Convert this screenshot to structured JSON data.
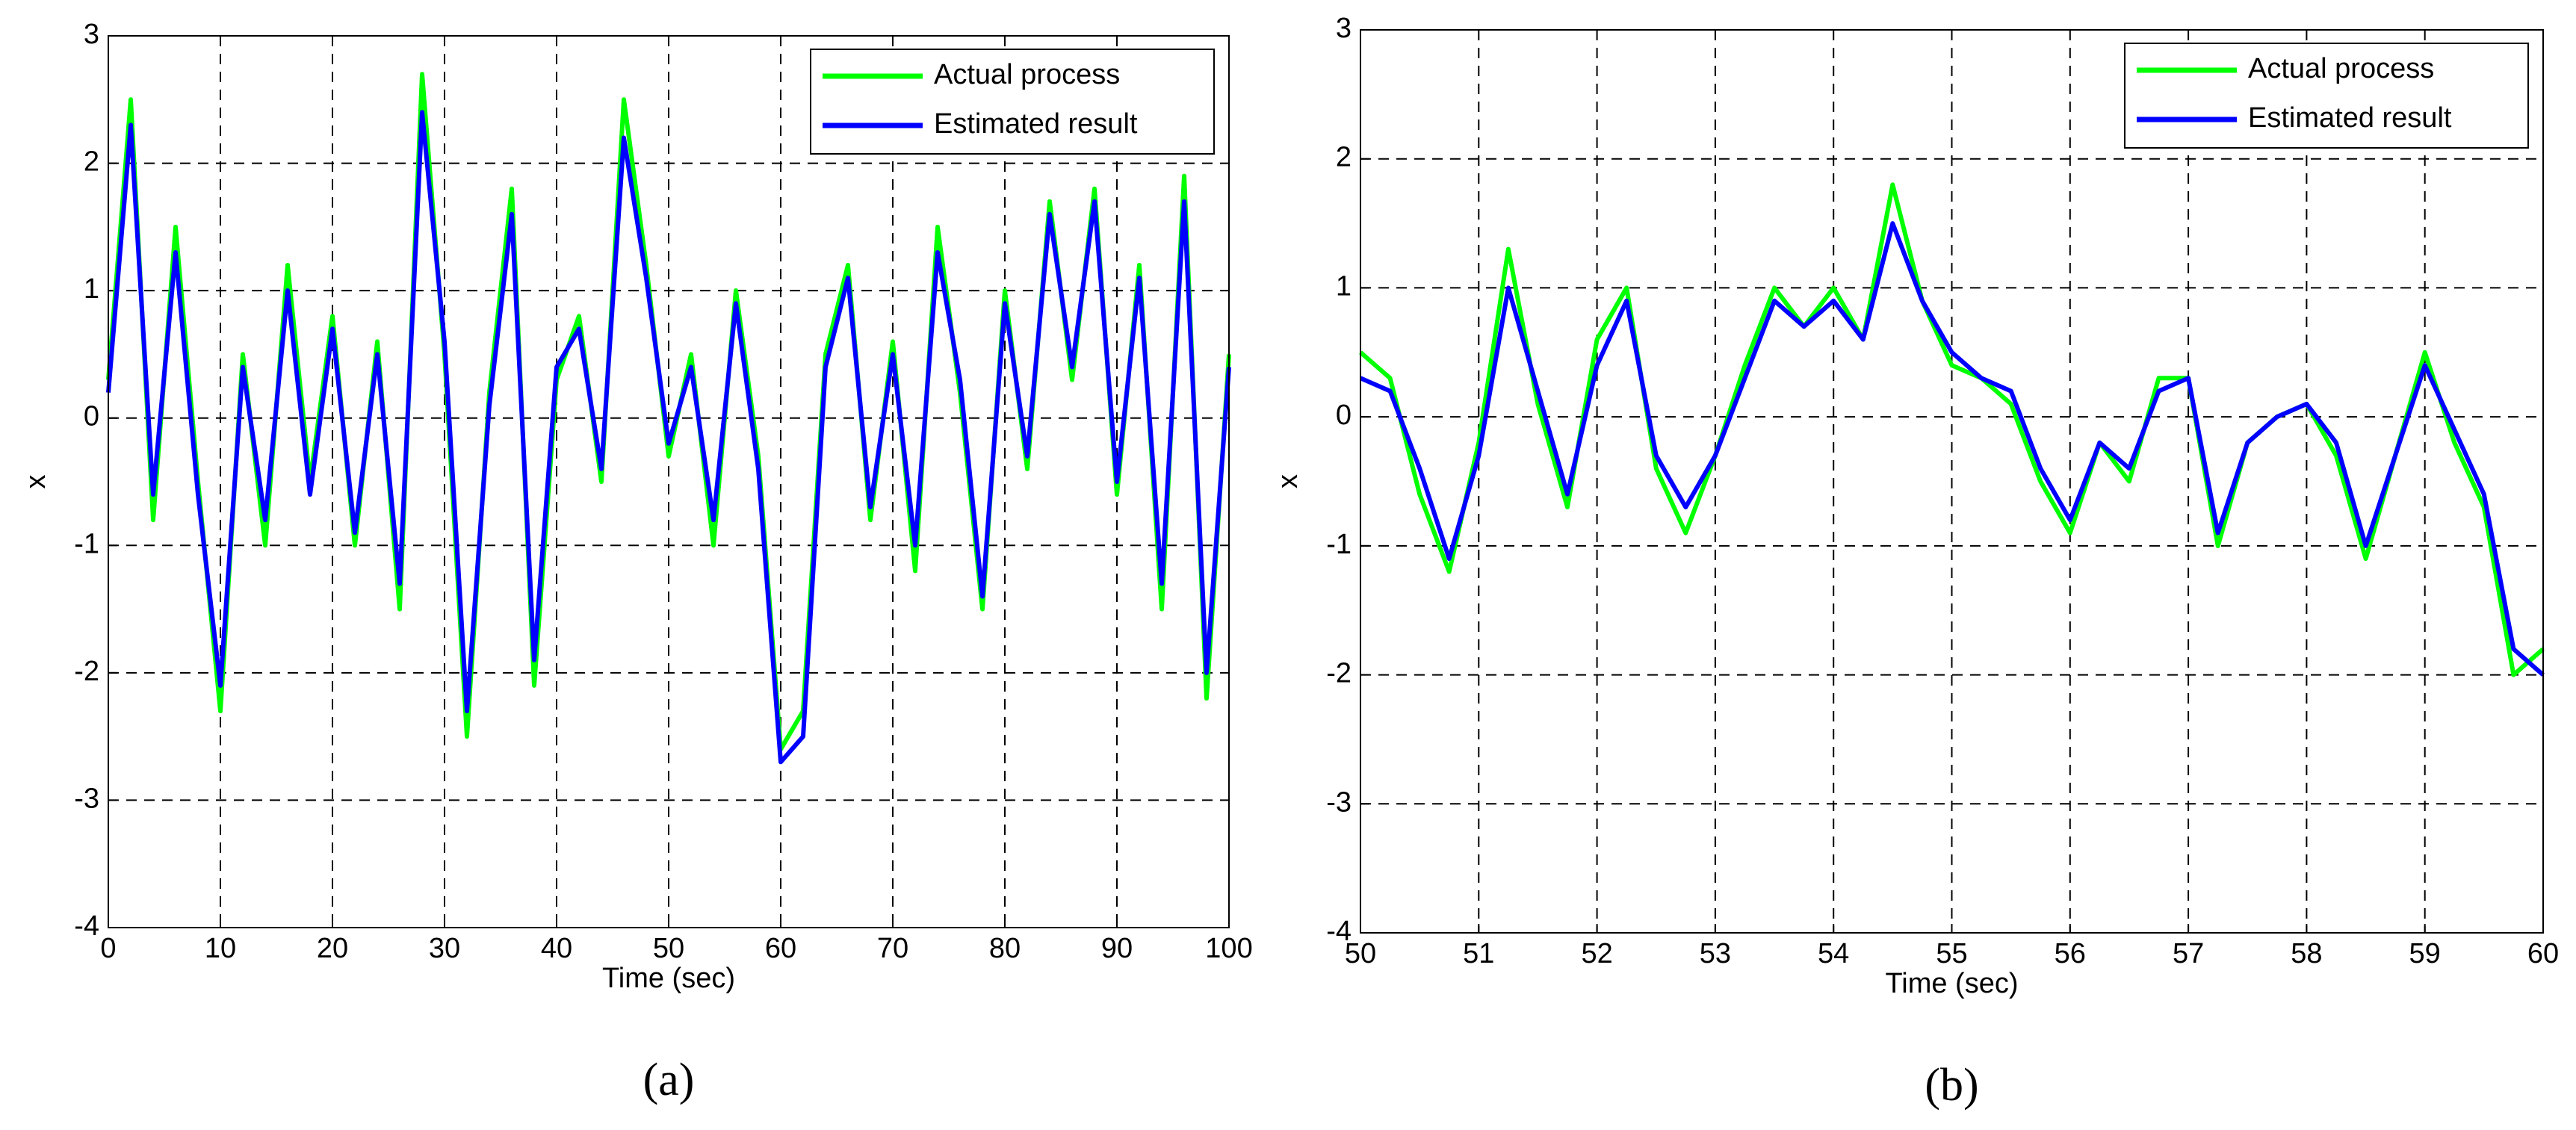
{
  "chart_data": [
    {
      "type": "line",
      "caption": "(a)",
      "xlabel": "Time (sec)",
      "ylabel": "x",
      "x": [
        0,
        2,
        4,
        6,
        8,
        10,
        12,
        14,
        16,
        18,
        20,
        22,
        24,
        26,
        28,
        30,
        32,
        34,
        36,
        38,
        40,
        42,
        44,
        46,
        48,
        50,
        52,
        54,
        56,
        58,
        60,
        62,
        64,
        66,
        68,
        70,
        72,
        74,
        76,
        78,
        80,
        82,
        84,
        86,
        88,
        90,
        92,
        94,
        96,
        98,
        100
      ],
      "series": [
        {
          "name": "Actual process",
          "color": "#00ff00",
          "values": [
            0.3,
            2.5,
            -0.8,
            1.5,
            -0.5,
            -2.3,
            0.5,
            -1.0,
            1.2,
            -0.5,
            0.8,
            -1.0,
            0.6,
            -1.5,
            2.7,
            0.5,
            -2.5,
            0.2,
            1.8,
            -2.1,
            0.3,
            0.8,
            -0.5,
            2.5,
            1.2,
            -0.3,
            0.5,
            -1.0,
            1.0,
            -0.3,
            -2.6,
            -2.3,
            0.5,
            1.2,
            -0.8,
            0.6,
            -1.2,
            1.5,
            0.2,
            -1.5,
            1.0,
            -0.4,
            1.7,
            0.3,
            1.8,
            -0.6,
            1.2,
            -1.5,
            1.9,
            -2.2,
            0.5
          ]
        },
        {
          "name": "Estimated result",
          "color": "#0000ff",
          "values": [
            0.2,
            2.3,
            -0.6,
            1.3,
            -0.6,
            -2.1,
            0.4,
            -0.8,
            1.0,
            -0.6,
            0.7,
            -0.9,
            0.5,
            -1.3,
            2.4,
            0.6,
            -2.3,
            0.1,
            1.6,
            -1.9,
            0.4,
            0.7,
            -0.4,
            2.2,
            1.1,
            -0.2,
            0.4,
            -0.8,
            0.9,
            -0.4,
            -2.7,
            -2.5,
            0.4,
            1.1,
            -0.7,
            0.5,
            -1.0,
            1.3,
            0.3,
            -1.4,
            0.9,
            -0.3,
            1.6,
            0.4,
            1.7,
            -0.5,
            1.1,
            -1.3,
            1.7,
            -2.0,
            0.4
          ]
        }
      ],
      "xlim": [
        0,
        100
      ],
      "ylim": [
        -4,
        3
      ],
      "xticks": [
        0,
        10,
        20,
        30,
        40,
        50,
        60,
        70,
        80,
        90,
        100
      ],
      "yticks": [
        -4,
        -3,
        -2,
        -1,
        0,
        1,
        2,
        3
      ],
      "grid": true,
      "legend": "upper right"
    },
    {
      "type": "line",
      "caption": "(b)",
      "xlabel": "Time (sec)",
      "ylabel": "x",
      "x": [
        50,
        50.25,
        50.5,
        50.75,
        51,
        51.25,
        51.5,
        51.75,
        52,
        52.25,
        52.5,
        52.75,
        53,
        53.25,
        53.5,
        53.75,
        54,
        54.25,
        54.5,
        54.75,
        55,
        55.25,
        55.5,
        55.75,
        56,
        56.25,
        56.5,
        56.75,
        57,
        57.25,
        57.5,
        57.75,
        58,
        58.25,
        58.5,
        58.75,
        59,
        59.25,
        59.5,
        59.75,
        60
      ],
      "series": [
        {
          "name": "Actual process",
          "color": "#00ff00",
          "values": [
            0.5,
            0.3,
            -0.6,
            -1.2,
            -0.2,
            1.3,
            0.1,
            -0.7,
            0.6,
            1.0,
            -0.4,
            -0.9,
            -0.3,
            0.4,
            1.0,
            0.7,
            1.0,
            0.6,
            1.8,
            0.9,
            0.4,
            0.3,
            0.1,
            -0.5,
            -0.9,
            -0.2,
            -0.5,
            0.3,
            0.3,
            -1.0,
            -0.2,
            0.0,
            0.1,
            -0.3,
            -1.1,
            -0.3,
            0.5,
            -0.2,
            -0.7,
            -2.0,
            -1.8
          ]
        },
        {
          "name": "Estimated result",
          "color": "#0000ff",
          "values": [
            0.3,
            0.2,
            -0.4,
            -1.1,
            -0.3,
            1.0,
            0.2,
            -0.6,
            0.4,
            0.9,
            -0.3,
            -0.7,
            -0.3,
            0.3,
            0.9,
            0.7,
            0.9,
            0.6,
            1.5,
            0.9,
            0.5,
            0.3,
            0.2,
            -0.4,
            -0.8,
            -0.2,
            -0.4,
            0.2,
            0.3,
            -0.9,
            -0.2,
            0.0,
            0.1,
            -0.2,
            -1.0,
            -0.3,
            0.4,
            -0.1,
            -0.6,
            -1.8,
            -2.0
          ]
        }
      ],
      "xlim": [
        50,
        60
      ],
      "ylim": [
        -4,
        3
      ],
      "xticks": [
        50,
        51,
        52,
        53,
        54,
        55,
        56,
        57,
        58,
        59,
        60
      ],
      "yticks": [
        -4,
        -3,
        -2,
        -1,
        0,
        1,
        2,
        3
      ],
      "grid": true,
      "legend": "upper right"
    }
  ]
}
